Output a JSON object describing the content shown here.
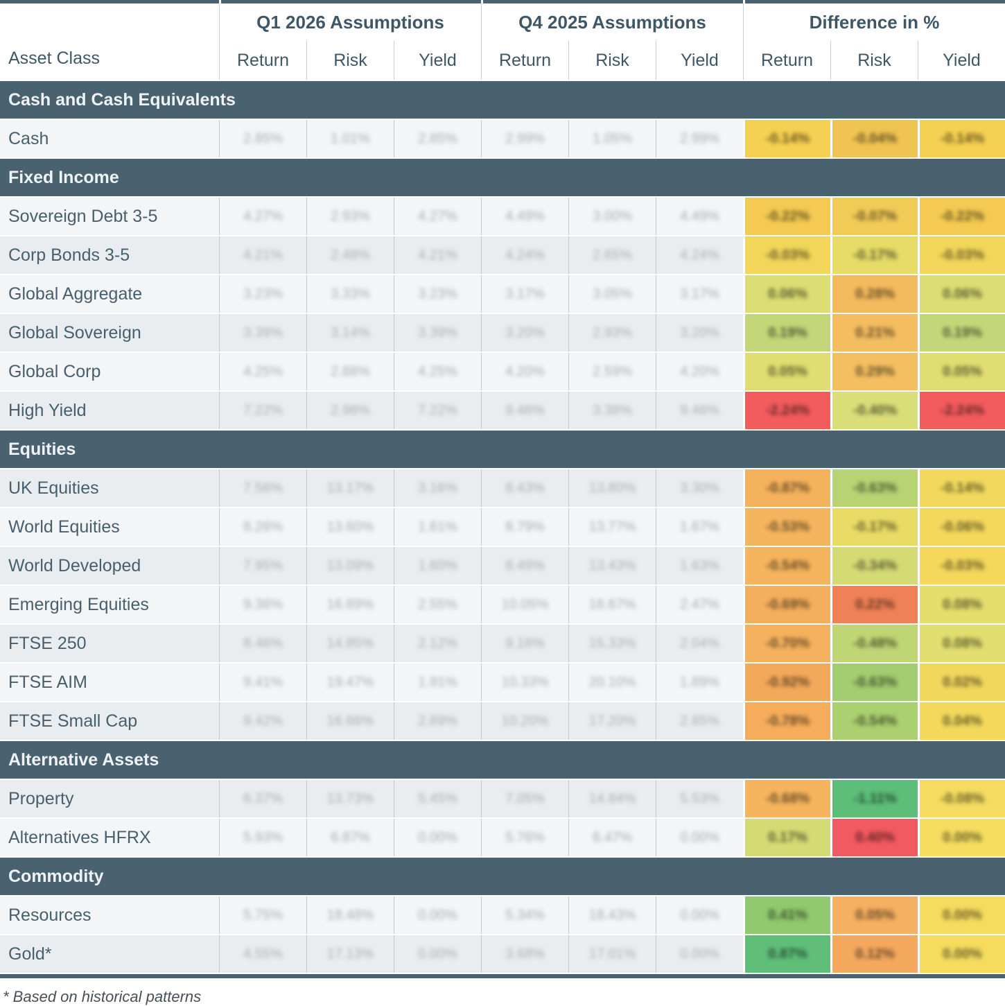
{
  "header": {
    "asset_class_label": "Asset Class",
    "groups": [
      {
        "label": "Q1 2026 Assumptions",
        "columns": [
          "Return",
          "Risk",
          "Yield"
        ]
      },
      {
        "label": "Q4 2025 Assumptions",
        "columns": [
          "Return",
          "Risk",
          "Yield"
        ]
      },
      {
        "label": "Difference in %",
        "columns": [
          "Return",
          "Risk",
          "Yield"
        ]
      }
    ]
  },
  "values_blurred": true,
  "sections": [
    {
      "label": "Cash and Cash Equivalents",
      "rows": [
        {
          "name": "Cash",
          "q1": [
            "2.85%",
            "1.01%",
            "2.85%"
          ],
          "q4": [
            "2.99%",
            "1.05%",
            "2.99%"
          ],
          "diff": [
            {
              "value": "-0.14%",
              "color": "#f6d052"
            },
            {
              "value": "-0.04%",
              "color": "#f0c453"
            },
            {
              "value": "-0.14%",
              "color": "#f6d052"
            }
          ]
        }
      ]
    },
    {
      "label": "Fixed Income",
      "rows": [
        {
          "name": "Sovereign Debt 3-5",
          "q1": [
            "4.27%",
            "2.93%",
            "4.27%"
          ],
          "q4": [
            "4.49%",
            "3.00%",
            "4.49%"
          ],
          "diff": [
            {
              "value": "-0.22%",
              "color": "#f4ca52"
            },
            {
              "value": "-0.07%",
              "color": "#f2cb57"
            },
            {
              "value": "-0.22%",
              "color": "#f4ca52"
            }
          ]
        },
        {
          "name": "Corp Bonds 3-5",
          "q1": [
            "4.21%",
            "2.48%",
            "4.21%"
          ],
          "q4": [
            "4.24%",
            "2.65%",
            "4.24%"
          ],
          "diff": [
            {
              "value": "-0.03%",
              "color": "#f2d65a"
            },
            {
              "value": "-0.17%",
              "color": "#e6dc67"
            },
            {
              "value": "-0.03%",
              "color": "#f2d65a"
            }
          ]
        },
        {
          "name": "Global Aggregate",
          "q1": [
            "3.23%",
            "3.33%",
            "3.23%"
          ],
          "q4": [
            "3.17%",
            "3.05%",
            "3.17%"
          ],
          "diff": [
            {
              "value": "0.06%",
              "color": "#dcde73"
            },
            {
              "value": "0.28%",
              "color": "#f4ba5e"
            },
            {
              "value": "0.06%",
              "color": "#dcde73"
            }
          ]
        },
        {
          "name": "Global Sovereign",
          "q1": [
            "3.39%",
            "3.14%",
            "3.39%"
          ],
          "q4": [
            "3.20%",
            "2.93%",
            "3.20%"
          ],
          "diff": [
            {
              "value": "0.19%",
              "color": "#c3d778"
            },
            {
              "value": "0.21%",
              "color": "#f4bd60"
            },
            {
              "value": "0.19%",
              "color": "#c3d778"
            }
          ]
        },
        {
          "name": "Global Corp",
          "q1": [
            "4.25%",
            "2.88%",
            "4.25%"
          ],
          "q4": [
            "4.20%",
            "2.59%",
            "4.20%"
          ],
          "diff": [
            {
              "value": "0.05%",
              "color": "#e0de70"
            },
            {
              "value": "0.29%",
              "color": "#f4bf61"
            },
            {
              "value": "0.05%",
              "color": "#e0de70"
            }
          ]
        },
        {
          "name": "High Yield",
          "q1": [
            "7.22%",
            "2.98%",
            "7.22%"
          ],
          "q4": [
            "9.46%",
            "3.38%",
            "9.46%"
          ],
          "diff": [
            {
              "value": "-2.24%",
              "color": "#f25c5d"
            },
            {
              "value": "-0.40%",
              "color": "#d9de79"
            },
            {
              "value": "-2.24%",
              "color": "#f25c5d"
            }
          ]
        }
      ]
    },
    {
      "label": "Equities",
      "rows": [
        {
          "name": "UK Equities",
          "q1": [
            "7.56%",
            "13.17%",
            "3.16%"
          ],
          "q4": [
            "8.43%",
            "13.80%",
            "3.30%"
          ],
          "diff": [
            {
              "value": "-0.87%",
              "color": "#f5b25c"
            },
            {
              "value": "-0.63%",
              "color": "#b7d373"
            },
            {
              "value": "-0.14%",
              "color": "#f2d95e"
            }
          ]
        },
        {
          "name": "World Equities",
          "q1": [
            "8.26%",
            "13.60%",
            "1.61%"
          ],
          "q4": [
            "8.79%",
            "13.77%",
            "1.67%"
          ],
          "diff": [
            {
              "value": "-0.53%",
              "color": "#f5b55e"
            },
            {
              "value": "-0.17%",
              "color": "#e9dc66"
            },
            {
              "value": "-0.06%",
              "color": "#f4d85c"
            }
          ]
        },
        {
          "name": "World Developed",
          "q1": [
            "7.95%",
            "13.09%",
            "1.60%"
          ],
          "q4": [
            "8.49%",
            "13.43%",
            "1.63%"
          ],
          "diff": [
            {
              "value": "-0.54%",
              "color": "#f5b45d"
            },
            {
              "value": "-0.34%",
              "color": "#d4db74"
            },
            {
              "value": "-0.03%",
              "color": "#f4d75b"
            }
          ]
        },
        {
          "name": "Emerging Equities",
          "q1": [
            "9.36%",
            "16.89%",
            "2.55%"
          ],
          "q4": [
            "10.05%",
            "16.67%",
            "2.47%"
          ],
          "diff": [
            {
              "value": "-0.69%",
              "color": "#f5ae5c"
            },
            {
              "value": "0.22%",
              "color": "#f08156"
            },
            {
              "value": "0.08%",
              "color": "#e5dd6c"
            }
          ]
        },
        {
          "name": "FTSE 250",
          "q1": [
            "8.46%",
            "14.85%",
            "2.12%"
          ],
          "q4": [
            "9.16%",
            "15.33%",
            "2.04%"
          ],
          "diff": [
            {
              "value": "-0.70%",
              "color": "#f5b15d"
            },
            {
              "value": "-0.48%",
              "color": "#c0d675"
            },
            {
              "value": "0.08%",
              "color": "#e2de6f"
            }
          ]
        },
        {
          "name": "FTSE AIM",
          "q1": [
            "9.41%",
            "19.47%",
            "1.91%"
          ],
          "q4": [
            "10.33%",
            "20.10%",
            "1.89%"
          ],
          "diff": [
            {
              "value": "-0.92%",
              "color": "#f3a95a"
            },
            {
              "value": "-0.63%",
              "color": "#a2cd71"
            },
            {
              "value": "0.02%",
              "color": "#f2d75d"
            }
          ]
        },
        {
          "name": "FTSE Small Cap",
          "q1": [
            "9.42%",
            "16.66%",
            "2.89%"
          ],
          "q4": [
            "10.20%",
            "17.20%",
            "2.85%"
          ],
          "diff": [
            {
              "value": "-0.78%",
              "color": "#f5ad5b"
            },
            {
              "value": "-0.54%",
              "color": "#abd06f"
            },
            {
              "value": "0.04%",
              "color": "#f3d85c"
            }
          ]
        }
      ]
    },
    {
      "label": "Alternative Assets",
      "rows": [
        {
          "name": "Property",
          "q1": [
            "6.37%",
            "13.73%",
            "5.45%"
          ],
          "q4": [
            "7.05%",
            "14.84%",
            "5.53%"
          ],
          "diff": [
            {
              "value": "-0.68%",
              "color": "#f5b45d"
            },
            {
              "value": "-1.11%",
              "color": "#5dbe79"
            },
            {
              "value": "-0.08%",
              "color": "#f5dc60"
            }
          ]
        },
        {
          "name": "Alternatives HFRX",
          "q1": [
            "5.93%",
            "6.87%",
            "0.00%"
          ],
          "q4": [
            "5.76%",
            "6.47%",
            "0.00%"
          ],
          "diff": [
            {
              "value": "0.17%",
              "color": "#d4db74"
            },
            {
              "value": "0.40%",
              "color": "#f15a60"
            },
            {
              "value": "0.00%",
              "color": "#f5dd60"
            }
          ]
        }
      ]
    },
    {
      "label": "Commodity",
      "rows": [
        {
          "name": "Resources",
          "q1": [
            "5.75%",
            "18.48%",
            "0.00%"
          ],
          "q4": [
            "5.34%",
            "18.43%",
            "0.00%"
          ],
          "diff": [
            {
              "value": "0.41%",
              "color": "#90c96e"
            },
            {
              "value": "0.05%",
              "color": "#f5b061"
            },
            {
              "value": "0.00%",
              "color": "#f5dc5f"
            }
          ]
        },
        {
          "name": "Gold*",
          "q1": [
            "4.55%",
            "17.13%",
            "0.00%"
          ],
          "q4": [
            "3.68%",
            "17.01%",
            "0.00%"
          ],
          "diff": [
            {
              "value": "0.87%",
              "color": "#5fbf78"
            },
            {
              "value": "0.12%",
              "color": "#f5a95e"
            },
            {
              "value": "0.00%",
              "color": "#f5dc5f"
            }
          ]
        }
      ]
    }
  ],
  "footnote": "* Based on historical patterns",
  "colors": {
    "header_bar": "#4a6170",
    "row_light": "#f3f5f6",
    "row_dark": "#e9edef",
    "positive_green": "#5fbf78",
    "neutral_yellow": "#f6d052",
    "warning_orange": "#f5b25c",
    "negative_red": "#f25c5d"
  }
}
